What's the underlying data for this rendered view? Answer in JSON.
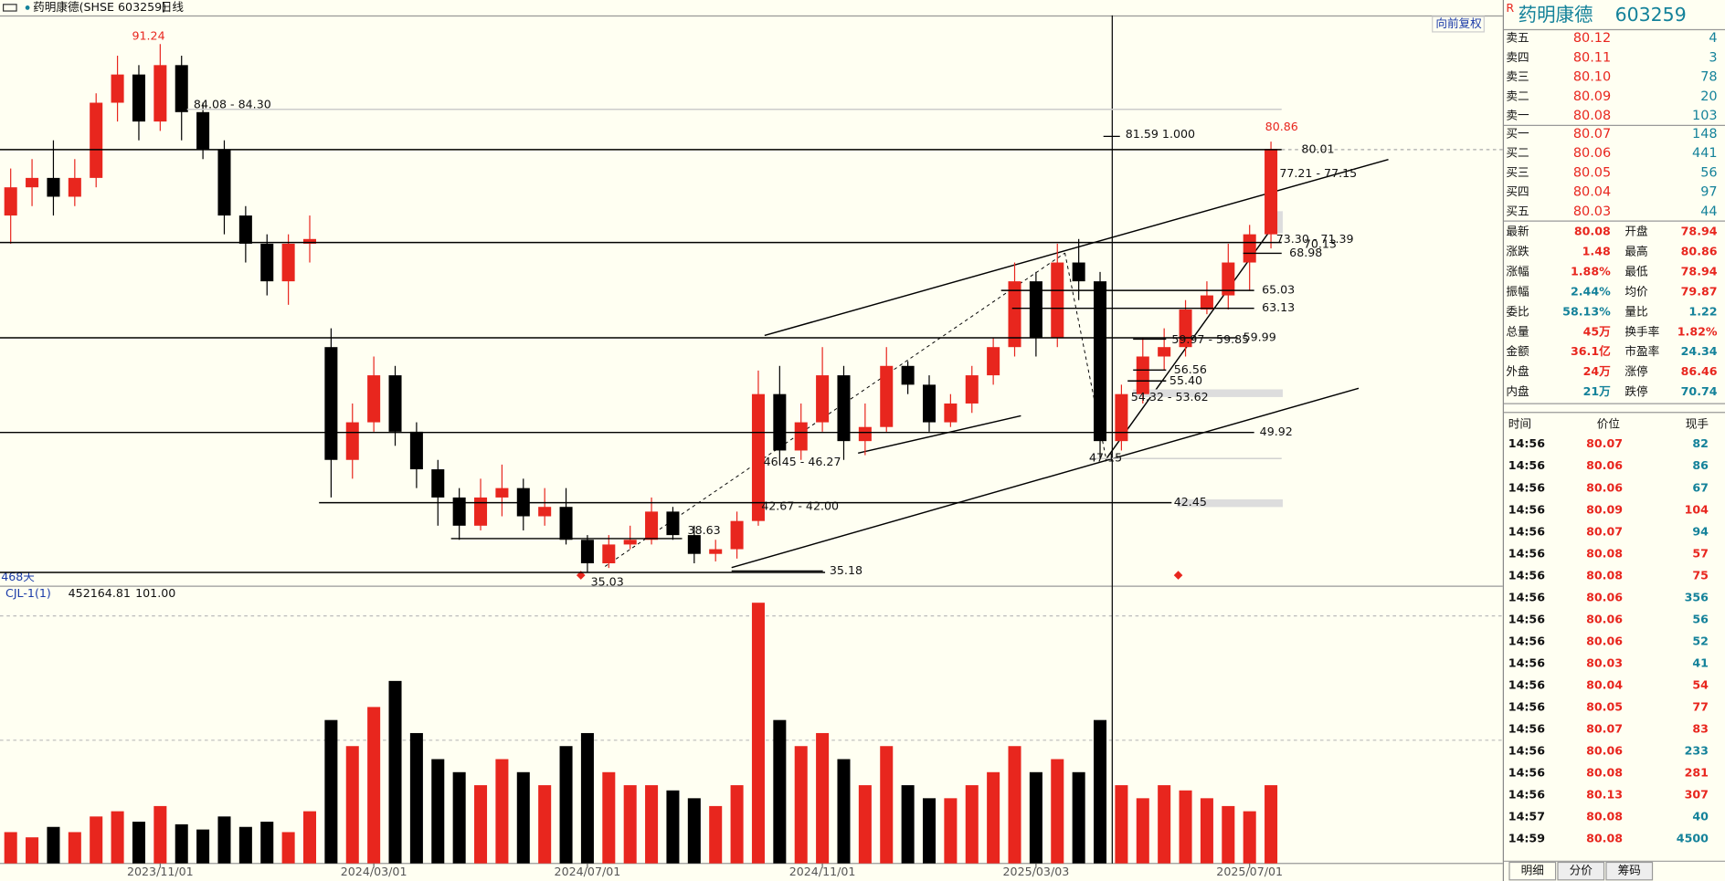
{
  "toolbar": {
    "title": "药明康德(SHSE 603259)",
    "period": "日线",
    "adjust": "向前复权"
  },
  "chart_data": [
    {
      "type": "candlestick",
      "days": "468天",
      "ylim": [
        33.91,
        94.29
      ],
      "open": [
        73,
        76,
        77,
        75,
        77,
        85,
        88,
        83,
        89,
        84,
        80,
        73,
        70,
        66,
        70,
        59,
        47,
        51,
        56,
        50,
        46,
        43,
        40,
        43,
        44,
        41,
        42,
        38.5,
        36,
        38,
        38.5,
        41.5,
        39,
        37,
        37.5,
        40.5,
        54,
        48,
        51,
        56,
        49,
        50.5,
        57,
        55,
        51,
        53,
        56,
        59,
        66,
        60,
        68,
        66,
        49,
        54,
        58,
        59,
        63,
        64.5,
        68,
        71
      ],
      "high": [
        78,
        79,
        81,
        79,
        86,
        90,
        89,
        91.24,
        90,
        85,
        81,
        74,
        71,
        71,
        73,
        61,
        53,
        58,
        57,
        51,
        47,
        44,
        45,
        46.5,
        45,
        44,
        44,
        39,
        39,
        40,
        43,
        42,
        40,
        38.5,
        41.5,
        56.5,
        57,
        53,
        59,
        57,
        53,
        59,
        57.5,
        56,
        54,
        57,
        60,
        68,
        67,
        70,
        70.5,
        67,
        55,
        60,
        61,
        64,
        66,
        70,
        72,
        80.86
      ],
      "low": [
        70,
        74,
        73,
        74,
        76,
        83,
        81,
        82,
        81,
        79,
        71,
        68,
        64.5,
        63.5,
        68,
        43,
        45,
        50,
        48.5,
        44,
        40,
        38.5,
        39.5,
        41,
        39.5,
        40,
        38,
        35.03,
        35.5,
        37.5,
        38,
        38.5,
        36,
        36.2,
        36.5,
        40,
        46.5,
        47,
        50,
        47,
        47.5,
        50,
        54,
        50,
        50.5,
        52,
        55,
        58,
        58,
        59,
        64,
        47.15,
        48,
        53,
        56.5,
        58,
        62.5,
        63,
        65,
        69.5
      ],
      "close": [
        76,
        77,
        75,
        77,
        85,
        88,
        83,
        89,
        84,
        80,
        73,
        70,
        66,
        70,
        70.5,
        47,
        51,
        56,
        50,
        46,
        43,
        40,
        43,
        44,
        41,
        42,
        38.5,
        36,
        38,
        38.5,
        41.5,
        39,
        37,
        37.5,
        40.5,
        54,
        48,
        51,
        56,
        49,
        50.5,
        57,
        55,
        51,
        53,
        56,
        59,
        66,
        60,
        68,
        66,
        49,
        54,
        58,
        59,
        63,
        64.5,
        68,
        71,
        80.08
      ],
      "up_color": "#e8261e",
      "down_color": "#000000",
      "annotations": [
        {
          "value": 84.3,
          "label": "84.08 - 84.30"
        },
        {
          "value": 80.01,
          "label": "80.01"
        },
        {
          "value": 81.59,
          "label": "81.59  1.000"
        },
        {
          "value": 77.21,
          "label": "77.21 - 77.15"
        },
        {
          "value": 71.39,
          "label": "73.30 - 71.39"
        },
        {
          "value": 70.13,
          "label": "70.13"
        },
        {
          "value": 68.98,
          "label": "68.98"
        },
        {
          "value": 65.03,
          "label": "65.03"
        },
        {
          "value": 63.13,
          "label": "63.13"
        },
        {
          "value": 59.99,
          "label": "59.99"
        },
        {
          "value": 59.85,
          "label": "59.97 - 59.85"
        },
        {
          "value": 56.56,
          "label": "56.56"
        },
        {
          "value": 55.4,
          "label": "55.40"
        },
        {
          "value": 53.62,
          "label": "54.32 - 53.62"
        },
        {
          "value": 49.92,
          "label": "49.92"
        },
        {
          "value": 47.15,
          "label": "47.15"
        },
        {
          "value": 46.27,
          "label": "46.45 - 46.27"
        },
        {
          "value": 42.0,
          "label": "42.67 - 42.00"
        },
        {
          "value": 42.45,
          "label": "42.45"
        },
        {
          "value": 38.63,
          "label": "38.63"
        },
        {
          "value": 35.18,
          "label": "35.18"
        },
        {
          "value": 35.03,
          "label": "35.03"
        },
        {
          "value": 91.24,
          "label": "91.24"
        },
        {
          "value": 80.86,
          "label": "80.86"
        }
      ]
    },
    {
      "type": "bar",
      "indicator": "CJL-1(1)",
      "readout": [
        "452164.81",
        "101.00"
      ],
      "ylim": [
        0,
        100
      ],
      "categories": [
        null,
        null,
        null,
        null,
        null,
        null,
        null,
        "2023/11/01",
        null,
        null,
        null,
        null,
        null,
        null,
        null,
        null,
        null,
        "2024/03/01",
        null,
        null,
        null,
        null,
        null,
        null,
        null,
        null,
        null,
        "2024/07/01",
        null,
        null,
        null,
        null,
        null,
        null,
        null,
        null,
        null,
        null,
        "2024/11/01",
        null,
        null,
        null,
        null,
        null,
        null,
        null,
        null,
        null,
        "2025/03/03",
        null,
        null,
        null,
        null,
        null,
        null,
        null,
        null,
        null,
        "2025/07/01",
        null
      ],
      "values": [
        12,
        10,
        14,
        12,
        18,
        20,
        16,
        22,
        15,
        13,
        18,
        14,
        16,
        12,
        20,
        55,
        45,
        60,
        70,
        50,
        40,
        35,
        30,
        40,
        35,
        30,
        45,
        50,
        35,
        30,
        30,
        28,
        25,
        22,
        30,
        100,
        55,
        45,
        50,
        40,
        30,
        45,
        30,
        25,
        25,
        30,
        35,
        45,
        35,
        40,
        35,
        55,
        30,
        25,
        30,
        28,
        25,
        22,
        20,
        30
      ]
    }
  ],
  "quote": {
    "flag": "R",
    "name": "药明康德",
    "code": "603259",
    "asks": [
      {
        "label": "卖五",
        "price": "80.12",
        "qty": "4"
      },
      {
        "label": "卖四",
        "price": "80.11",
        "qty": "3"
      },
      {
        "label": "卖三",
        "price": "80.10",
        "qty": "78"
      },
      {
        "label": "卖二",
        "price": "80.09",
        "qty": "20"
      },
      {
        "label": "卖一",
        "price": "80.08",
        "qty": "103"
      }
    ],
    "bids": [
      {
        "label": "买一",
        "price": "80.07",
        "qty": "148"
      },
      {
        "label": "买二",
        "price": "80.06",
        "qty": "441"
      },
      {
        "label": "买三",
        "price": "80.05",
        "qty": "56"
      },
      {
        "label": "买四",
        "price": "80.04",
        "qty": "97"
      },
      {
        "label": "买五",
        "price": "80.03",
        "qty": "44"
      }
    ],
    "stats": [
      [
        "最新",
        "80.08",
        "开盘",
        "78.94"
      ],
      [
        "涨跌",
        "1.48",
        "最高",
        "80.86"
      ],
      [
        "涨幅",
        "1.88%",
        "最低",
        "78.94"
      ],
      [
        "振幅",
        "2.44%",
        "均价",
        "79.87"
      ],
      [
        "委比",
        "58.13%",
        "量比",
        "1.22"
      ],
      [
        "总量",
        "45万",
        "换手率",
        "1.82%"
      ],
      [
        "金额",
        "36.1亿",
        "市盈率",
        "24.34"
      ],
      [
        "外盘",
        "24万",
        "涨停",
        "86.46"
      ],
      [
        "内盘",
        "21万",
        "跌停",
        "70.74"
      ]
    ],
    "ticks": {
      "header": [
        "时间",
        "价位",
        "现手"
      ],
      "rows": [
        [
          "14:56",
          "80.07",
          "82"
        ],
        [
          "14:56",
          "80.06",
          "86"
        ],
        [
          "14:56",
          "80.06",
          "67"
        ],
        [
          "14:56",
          "80.09",
          "104"
        ],
        [
          "14:56",
          "80.07",
          "94"
        ],
        [
          "14:56",
          "80.08",
          "57"
        ],
        [
          "14:56",
          "80.08",
          "75"
        ],
        [
          "14:56",
          "80.06",
          "356"
        ],
        [
          "14:56",
          "80.06",
          "56"
        ],
        [
          "14:56",
          "80.06",
          "52"
        ],
        [
          "14:56",
          "80.03",
          "41"
        ],
        [
          "14:56",
          "80.04",
          "54"
        ],
        [
          "14:56",
          "80.05",
          "77"
        ],
        [
          "14:56",
          "80.07",
          "83"
        ],
        [
          "14:56",
          "80.06",
          "233"
        ],
        [
          "14:56",
          "80.08",
          "281"
        ],
        [
          "14:56",
          "80.13",
          "307"
        ],
        [
          "14:57",
          "80.08",
          "40"
        ],
        [
          "14:59",
          "80.08",
          "4500"
        ]
      ]
    },
    "tabs": [
      "明细",
      "分价",
      "筹码"
    ]
  }
}
